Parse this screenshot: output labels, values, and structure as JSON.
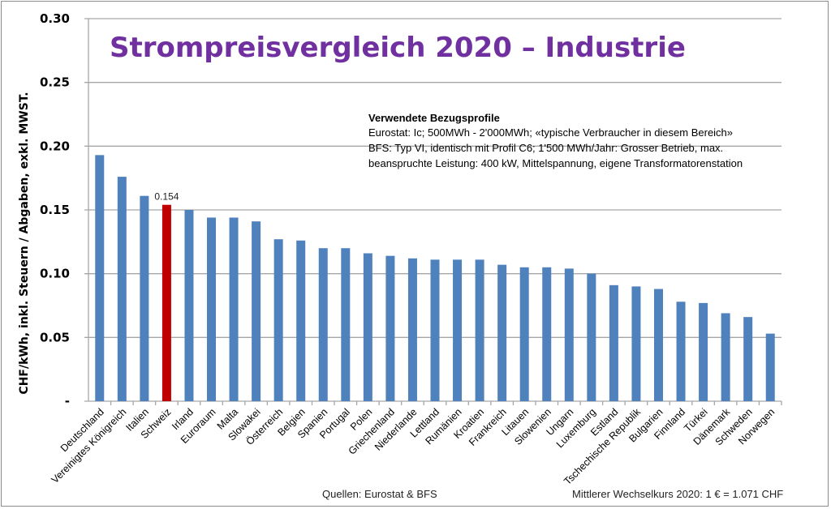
{
  "chart_data": {
    "type": "bar",
    "title": "Strompreisvergleich 2020 – Industrie",
    "xlabel": "",
    "ylabel": "CHF/kWh, inkl. Steuern / Abgaben, exkl. MWST.",
    "ylim": [
      0,
      0.3
    ],
    "yticks": [
      0,
      0.05,
      0.1,
      0.15,
      0.2,
      0.25,
      0.3
    ],
    "ytick_labels": [
      "-",
      "0.05",
      "0.10",
      "0.15",
      "0.20",
      "0.25",
      "0.30"
    ],
    "grid": true,
    "legend": "none",
    "categories": [
      "Deutschland",
      "Vereinigtes Königreich",
      "Italien",
      "Schweiz",
      "Irland",
      "Euroraum",
      "Malta",
      "Slowakei",
      "Österreich",
      "Belgien",
      "Spanien",
      "Portugal",
      "Polen",
      "Griechenland",
      "Niederlande",
      "Lettland",
      "Rumänien",
      "Kroatien",
      "Frankreich",
      "Litauen",
      "Slowenien",
      "Ungarn",
      "Luxemburg",
      "Estland",
      "Tschechische Republik",
      "Bulgarien",
      "Finnland",
      "Türkei",
      "Dänemark",
      "Schweden",
      "Norwegen"
    ],
    "values": [
      0.193,
      0.176,
      0.161,
      0.154,
      0.15,
      0.144,
      0.144,
      0.141,
      0.127,
      0.126,
      0.12,
      0.12,
      0.116,
      0.114,
      0.112,
      0.111,
      0.111,
      0.111,
      0.107,
      0.105,
      0.105,
      0.104,
      0.1,
      0.091,
      0.09,
      0.088,
      0.078,
      0.077,
      0.069,
      0.066,
      0.053
    ],
    "highlight": {
      "category": "Schweiz",
      "label": "0.154"
    },
    "colors": {
      "bar": "#4f81bd",
      "highlight": "#c00000",
      "title": "#7030a0",
      "grid": "#a6a6a6"
    },
    "annotation": {
      "heading": "Verwendete Bezugsprofile",
      "lines": [
        "Eurostat: Ic; 500MWh - 2'000MWh; «typische Verbraucher in diesem Bereich»",
        "BFS: Typ VI, identisch mit Profil C6; 1'500 MWh/Jahr: Grosser Betrieb, max.",
        "beanspruchte Leistung: 400 kW, Mittelspannung, eigene Transformatorenstation"
      ]
    },
    "footer": {
      "sources": "Quellen:  Eurostat & BFS",
      "exchange_rate": "Mittlerer Wechselkurs 2020: 1 € = 1.071 CHF"
    }
  }
}
